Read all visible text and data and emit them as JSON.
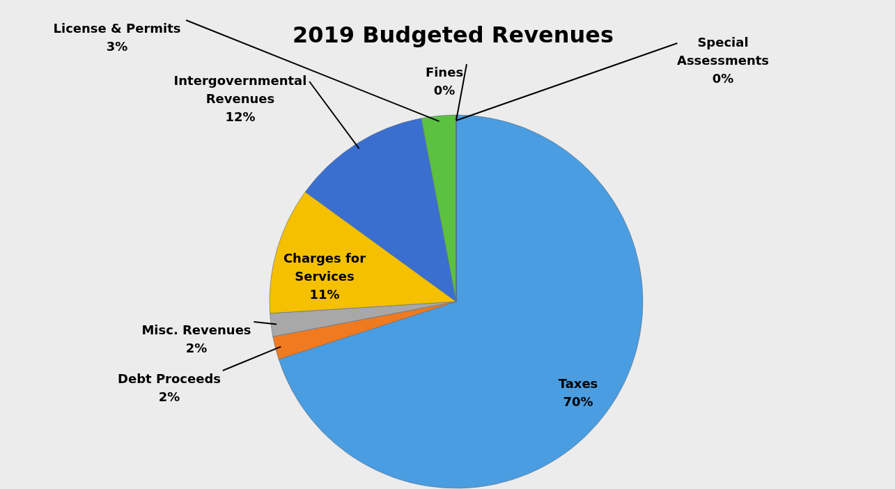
{
  "chart_data": {
    "type": "pie",
    "title": "2019 Budgeted Revenues",
    "categories": [
      "Taxes",
      "Debt Proceeds",
      "Misc. Revenues",
      "Charges for Services",
      "Intergovernmental Revenues",
      "License & Permits",
      "Fines",
      "Special Assessments"
    ],
    "values": [
      70,
      2,
      2,
      11,
      12,
      3,
      0,
      0
    ],
    "value_labels": [
      "70%",
      "2%",
      "2%",
      "11%",
      "12%",
      "3%",
      "0%",
      "0%"
    ],
    "colors": [
      "#4a9de0",
      "#f07a20",
      "#a8a8a8",
      "#f5c000",
      "#3a6fd0",
      "#5cc040",
      "#2f4f9f",
      "#c04a10"
    ],
    "legend": false
  }
}
